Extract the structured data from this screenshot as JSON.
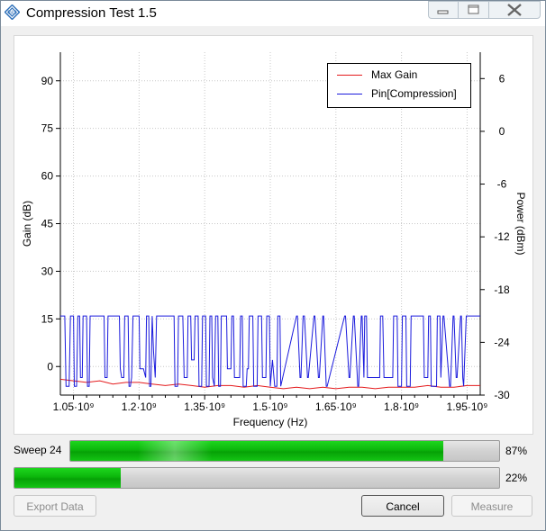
{
  "window": {
    "title": "Compression Test 1.5",
    "icon": "rohde-schwarz-diamond-icon"
  },
  "colors": {
    "max_gain": "#e41a1c",
    "pin_compression": "#1a1adc",
    "progress_fill": "#12b812"
  },
  "chart_data": {
    "type": "line",
    "xlabel": "Frequency (Hz)",
    "ylabel": "Gain (dB)",
    "y2label": "Power (dBm)",
    "xlim": [
      1020000000.0,
      1980000000.0
    ],
    "ylim": [
      -9,
      99
    ],
    "y2lim": [
      -30,
      9
    ],
    "x_ticks": [
      1050000000.0,
      1200000000.0,
      1350000000.0,
      1500000000.0,
      1650000000.0,
      1800000000.0,
      1950000000.0
    ],
    "x_tick_labels": [
      "1.05·10⁹",
      "1.2·10⁹",
      "1.35·10⁹",
      "1.5·10⁹",
      "1.65·10⁹",
      "1.8·10⁹",
      "1.95·10⁹"
    ],
    "y_ticks": [
      90,
      75,
      60,
      45,
      30,
      15,
      0
    ],
    "y_tick_labels": [
      "90",
      "75",
      "60",
      "45",
      "30",
      "15",
      "0"
    ],
    "y2_ticks": [
      6,
      0,
      -6,
      -12,
      -18,
      -24,
      -30
    ],
    "y2_tick_labels": [
      "6",
      "0",
      "-6",
      "-12",
      "-18",
      "-24",
      "-30"
    ],
    "grid": true,
    "legend_position": "top-right",
    "series": [
      {
        "name": "Max Gain",
        "axis": "left",
        "x": [
          1020000000.0,
          1050000000.0,
          1080000000.0,
          1110000000.0,
          1140000000.0,
          1170000000.0,
          1200000000.0,
          1230000000.0,
          1260000000.0,
          1290000000.0,
          1320000000.0,
          1350000000.0,
          1380000000.0,
          1410000000.0,
          1440000000.0,
          1470000000.0,
          1500000000.0,
          1530000000.0,
          1560000000.0,
          1590000000.0,
          1620000000.0,
          1650000000.0,
          1680000000.0,
          1710000000.0,
          1740000000.0,
          1770000000.0,
          1800000000.0,
          1830000000.0,
          1860000000.0,
          1890000000.0,
          1920000000.0,
          1950000000.0,
          1980000000.0
        ],
        "y": [
          -4,
          -4.5,
          -5,
          -4.5,
          -5.5,
          -5,
          -5,
          -5.5,
          -6,
          -5.5,
          -6,
          -6.5,
          -6,
          -6,
          -6.5,
          -6,
          -6.5,
          -7,
          -6.5,
          -7,
          -6.5,
          -7,
          -6.5,
          -6.5,
          -7,
          -6.5,
          -6.5,
          -6.5,
          -6,
          -6.5,
          -6.5,
          -6,
          -6
        ]
      },
      {
        "name": "Pin[Compression]",
        "axis": "right",
        "x": [
          1020000000.0,
          1030000000.0,
          1033000000.0,
          1040000000.0,
          1043000000.0,
          1050000000.0,
          1052000000.0,
          1057000000.0,
          1060000000.0,
          1064000000.0,
          1066000000.0,
          1070000000.0,
          1072000000.0,
          1080000000.0,
          1082000000.0,
          1086000000.0,
          1088000000.0,
          1120000000.0,
          1122000000.0,
          1127000000.0,
          1129000000.0,
          1155000000.0,
          1157000000.0,
          1160000000.0,
          1165000000.0,
          1167000000.0,
          1175000000.0,
          1177000000.0,
          1180000000.0,
          1183000000.0,
          1186000000.0,
          1200000000.0,
          1202000000.0,
          1210000000.0,
          1215000000.0,
          1217000000.0,
          1222000000.0,
          1224000000.0,
          1227000000.0,
          1230000000.0,
          1233000000.0,
          1237000000.0,
          1240000000.0,
          1280000000.0,
          1282000000.0,
          1288000000.0,
          1290000000.0,
          1300000000.0,
          1303000000.0,
          1310000000.0,
          1312000000.0,
          1318000000.0,
          1320000000.0,
          1326000000.0,
          1328000000.0,
          1335000000.0,
          1337000000.0,
          1343000000.0,
          1345000000.0,
          1352000000.0,
          1354000000.0,
          1360000000.0,
          1362000000.0,
          1366000000.0,
          1368000000.0,
          1372000000.0,
          1375000000.0,
          1380000000.0,
          1382000000.0,
          1386000000.0,
          1388000000.0,
          1400000000.0,
          1402000000.0,
          1410000000.0,
          1412000000.0,
          1416000000.0,
          1418000000.0,
          1430000000.0,
          1432000000.0,
          1436000000.0,
          1438000000.0,
          1445000000.0,
          1447000000.0,
          1450000000.0,
          1452000000.0,
          1460000000.0,
          1462000000.0,
          1470000000.0,
          1472000000.0,
          1480000000.0,
          1482000000.0,
          1490000000.0,
          1492000000.0,
          1498000000.0,
          1500000000.0,
          1505000000.0,
          1510000000.0,
          1515000000.0,
          1517000000.0,
          1522000000.0,
          1524000000.0,
          1560000000.0,
          1562000000.0,
          1568000000.0,
          1570000000.0,
          1575000000.0,
          1578000000.0,
          1585000000.0,
          1587000000.0,
          1600000000.0,
          1602000000.0,
          1610000000.0,
          1612000000.0,
          1620000000.0,
          1622000000.0,
          1628000000.0,
          1630000000.0,
          1670000000.0,
          1672000000.0,
          1680000000.0,
          1682000000.0,
          1690000000.0,
          1692000000.0,
          1700000000.0,
          1702000000.0,
          1708000000.0,
          1710000000.0,
          1714000000.0,
          1716000000.0,
          1720000000.0,
          1722000000.0,
          1750000000.0,
          1752000000.0,
          1757000000.0,
          1760000000.0,
          1780000000.0,
          1782000000.0,
          1790000000.0,
          1792000000.0,
          1800000000.0,
          1802000000.0,
          1810000000.0,
          1812000000.0,
          1820000000.0,
          1822000000.0,
          1850000000.0,
          1852000000.0,
          1860000000.0,
          1862000000.0,
          1866000000.0,
          1868000000.0,
          1880000000.0,
          1882000000.0,
          1888000000.0,
          1890000000.0,
          1895000000.0,
          1897000000.0,
          1910000000.0,
          1912000000.0,
          1918000000.0,
          1920000000.0,
          1925000000.0,
          1927000000.0,
          1935000000.0,
          1937000000.0,
          1940000000.0,
          1942000000.0,
          1948000000.0,
          1950000000.0,
          1980000000.0
        ],
        "y": [
          -21,
          -21,
          -29,
          -29,
          -21,
          -21,
          -29,
          -29,
          -21,
          -21,
          -28,
          -28,
          -21,
          -21,
          -29,
          -29,
          -21,
          -21,
          -28,
          -28,
          -21,
          -21,
          -27,
          -28,
          -28,
          -21,
          -21,
          -29,
          -29,
          -28,
          -21,
          -21,
          -27,
          -27,
          -28,
          -21,
          -21,
          -29,
          -29,
          -21,
          -25,
          -28,
          -21,
          -21,
          -29,
          -29,
          -21,
          -21,
          -28,
          -28,
          -21,
          -21,
          -26,
          -26,
          -21,
          -21,
          -29,
          -29,
          -21,
          -21,
          -29,
          -29,
          -21,
          -21,
          -28,
          -29,
          -21,
          -21,
          -29,
          -29,
          -21,
          -21,
          -27,
          -27,
          -21,
          -21,
          -28,
          -28,
          -21,
          -21,
          -29,
          -29,
          -27,
          -27,
          -21,
          -21,
          -29,
          -29,
          -21,
          -21,
          -28,
          -28,
          -21,
          -21,
          -29,
          -26,
          -29,
          -29,
          -21,
          -21,
          -29,
          -21,
          -21,
          -28,
          -28,
          -21,
          -21,
          -28,
          -28,
          -21,
          -21,
          -28,
          -28,
          -21,
          -21,
          -29,
          -29,
          -21,
          -21,
          -28,
          -28,
          -21,
          -21,
          -29,
          -29,
          -21,
          -21,
          -28,
          -21,
          -21,
          -28,
          -28,
          -21,
          -21,
          -28,
          -28,
          -21,
          -21,
          -29,
          -29,
          -21,
          -21,
          -29,
          -29,
          -21,
          -21,
          -28,
          -28,
          -21,
          -21,
          -29,
          -29,
          -21,
          -21,
          -28,
          -21,
          -21,
          -29,
          -29,
          -21,
          -21,
          -28,
          -28,
          -21,
          -21,
          -28,
          -29,
          -21,
          -21,
          -21
        ]
      }
    ]
  },
  "progress": {
    "sweep_label": "Sweep 24",
    "sweep_value": 0.87,
    "sweep_percent_text": "87%",
    "step_value": 0.22,
    "step_percent_text": "22%"
  },
  "buttons": {
    "export_label": "Export Data",
    "cancel_label": "Cancel",
    "measure_label": "Measure"
  }
}
